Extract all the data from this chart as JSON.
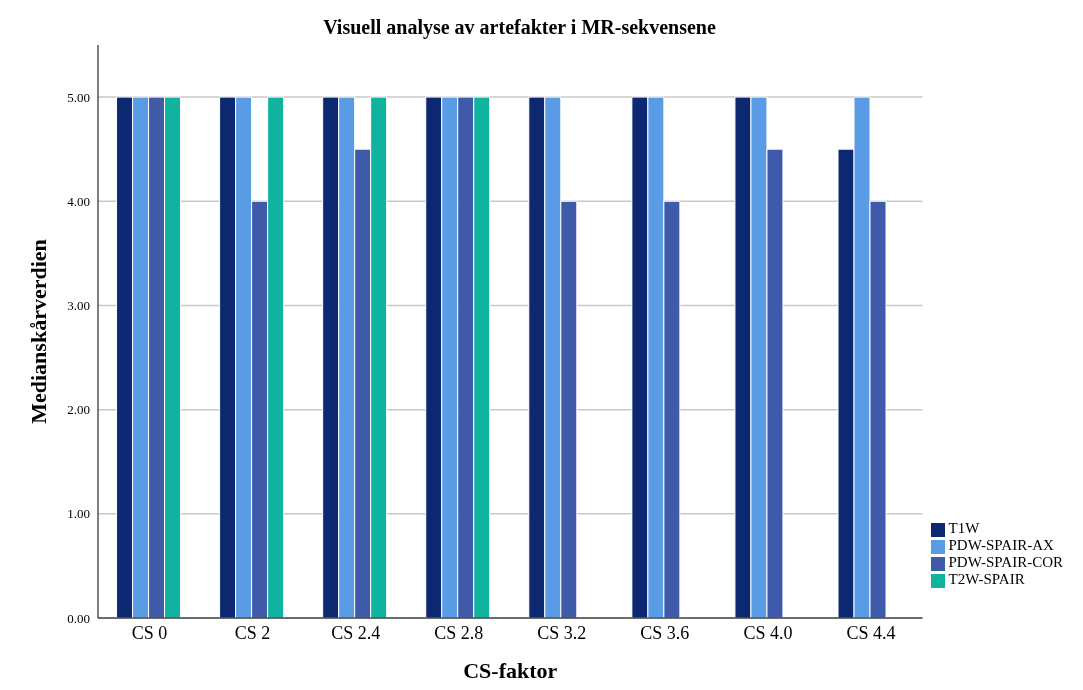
{
  "chart_data": {
    "type": "bar",
    "title": "Visuell analyse av artefakter i MR-sekvensene",
    "xlabel": "CS-faktor",
    "ylabel": "Medianskårverdien",
    "categories": [
      "CS 0",
      "CS 2",
      "CS 2.4",
      "CS 2.8",
      "CS 3.2",
      "CS 3.6",
      "CS 4.0",
      "CS 4.4"
    ],
    "series": [
      {
        "name": "T1W",
        "color": "#0c2870",
        "values": [
          5,
          5,
          5,
          5,
          5,
          5,
          5,
          4.5
        ]
      },
      {
        "name": "PDW-SPAIR-AX",
        "color": "#5a9be6",
        "values": [
          5,
          5,
          5,
          5,
          5,
          5,
          5,
          5
        ]
      },
      {
        "name": "PDW-SPAIR-COR",
        "color": "#3f5aa8",
        "values": [
          5,
          4,
          4.5,
          5,
          4,
          4,
          4.5,
          4
        ]
      },
      {
        "name": "T2W-SPAIR",
        "color": "#10b3a0",
        "values": [
          5,
          5,
          5,
          5,
          null,
          null,
          null,
          null
        ]
      }
    ],
    "ylim": [
      0,
      5.5
    ],
    "yticks": [
      {
        "value": 0,
        "label": "0.00"
      },
      {
        "value": 1,
        "label": "1.00"
      },
      {
        "value": 2,
        "label": "2.00"
      },
      {
        "value": 3,
        "label": "3.00"
      },
      {
        "value": 4,
        "label": "4.00"
      },
      {
        "value": 5,
        "label": "5.00"
      }
    ],
    "grid": "y",
    "legend": "bottom right"
  }
}
